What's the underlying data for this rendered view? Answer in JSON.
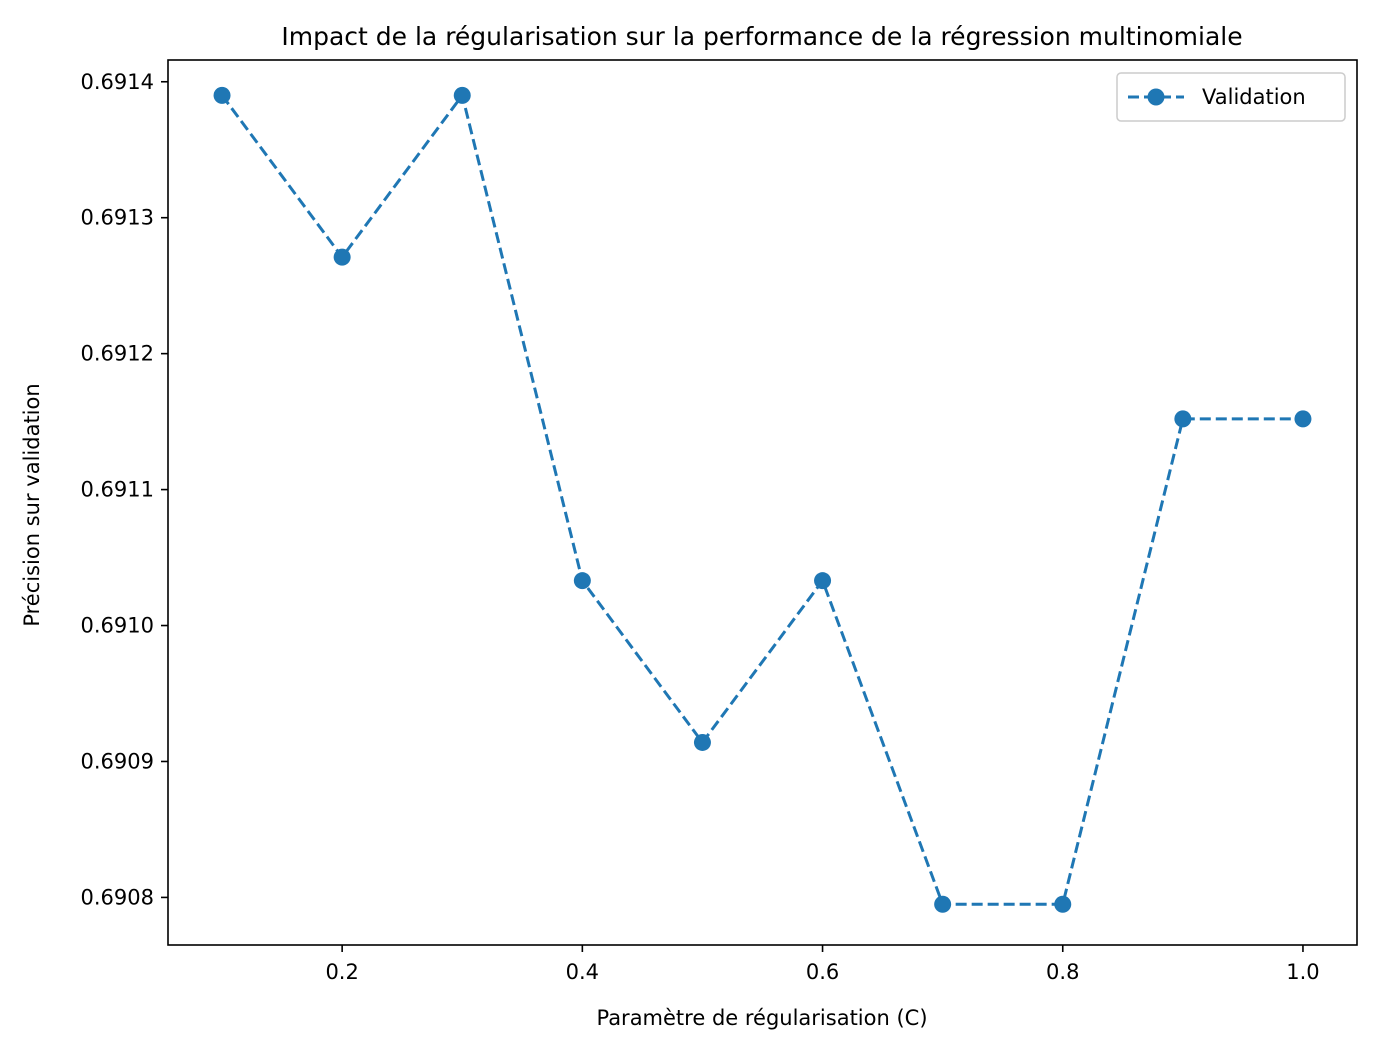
{
  "chart_data": {
    "type": "line",
    "title": "Impact de la régularisation sur la performance de la régression multinomiale",
    "xlabel": "Paramètre de régularisation (C)",
    "ylabel": "Précision sur validation",
    "x": [
      0.1,
      0.2,
      0.3,
      0.4,
      0.5,
      0.6,
      0.7,
      0.8,
      0.9,
      1.0
    ],
    "series": [
      {
        "name": "Validation",
        "color": "#1f77b4",
        "line_style": "dashed",
        "marker": "circle",
        "values": [
          0.69139,
          0.691271,
          0.69139,
          0.691033,
          0.690914,
          0.691033,
          0.690795,
          0.690795,
          0.691152,
          0.691152
        ]
      }
    ],
    "xlim": [
      0.055,
      1.045
    ],
    "ylim": [
      0.690765,
      0.691416
    ],
    "xticks": [
      0.2,
      0.4,
      0.6,
      0.8,
      1.0
    ],
    "xtick_labels": [
      "0.2",
      "0.4",
      "0.6",
      "0.8",
      "1.0"
    ],
    "yticks": [
      0.6908,
      0.6909,
      0.691,
      0.6911,
      0.6912,
      0.6913,
      0.6914
    ],
    "ytick_labels": [
      "0.6908",
      "0.6909",
      "0.6910",
      "0.6911",
      "0.6912",
      "0.6913",
      "0.6914"
    ],
    "grid": false,
    "legend_position": "upper right"
  }
}
